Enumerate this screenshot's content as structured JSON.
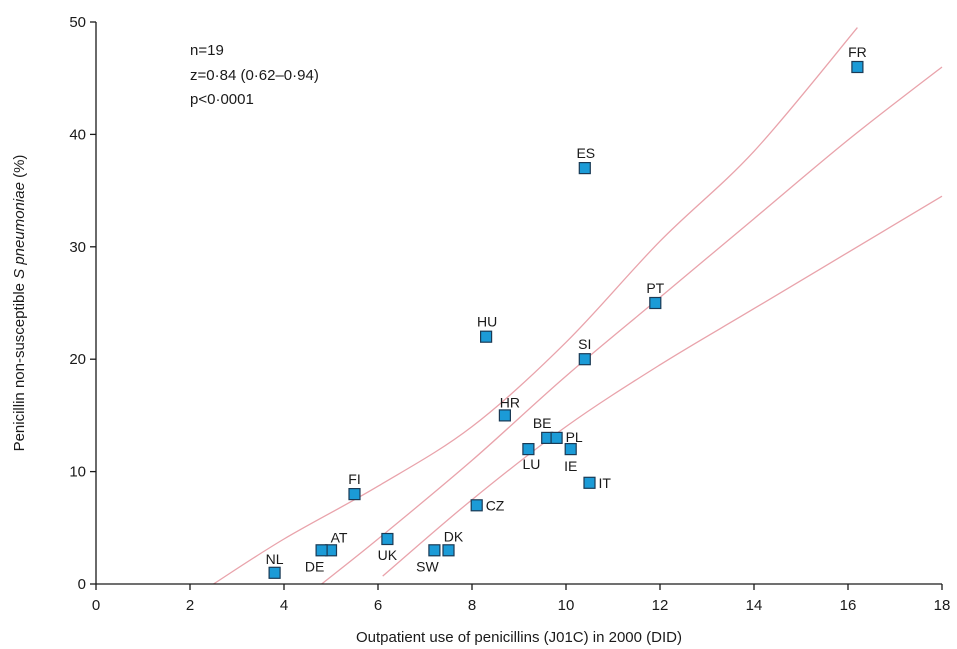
{
  "chart_data": {
    "type": "scatter",
    "xlabel": "Outpatient use of penicillins (J01C) in 2000 (DID)",
    "ylabel": {
      "prefix": "Penicillin non-susceptible ",
      "italic": "S pneumoniae",
      "suffix": " (%)"
    },
    "xlim": [
      0,
      18
    ],
    "ylim": [
      0,
      50
    ],
    "xticks": [
      "0",
      "2",
      "4",
      "6",
      "8",
      "10",
      "12",
      "14",
      "16",
      "18"
    ],
    "yticks": [
      "0",
      "10",
      "20",
      "30",
      "40",
      "50"
    ],
    "grid": false,
    "annotations": [
      "n=19",
      "z=0·84 (0·62–0·94)",
      "p<0·0001"
    ],
    "points": [
      {
        "label": "FR",
        "x": 16.2,
        "y": 46
      },
      {
        "label": "ES",
        "x": 10.4,
        "y": 37
      },
      {
        "label": "PT",
        "x": 11.9,
        "y": 25
      },
      {
        "label": "HU",
        "x": 8.3,
        "y": 22
      },
      {
        "label": "SI",
        "x": 10.4,
        "y": 20
      },
      {
        "label": "HR",
        "x": 8.7,
        "y": 15
      },
      {
        "label": "BE",
        "x": 9.6,
        "y": 13
      },
      {
        "label": "PL",
        "x": 9.8,
        "y": 13
      },
      {
        "label": "LU",
        "x": 9.2,
        "y": 12
      },
      {
        "label": "IE",
        "x": 10.1,
        "y": 12
      },
      {
        "label": "IT",
        "x": 10.5,
        "y": 9
      },
      {
        "label": "FI",
        "x": 5.5,
        "y": 8
      },
      {
        "label": "CZ",
        "x": 8.1,
        "y": 7
      },
      {
        "label": "UK",
        "x": 6.2,
        "y": 4
      },
      {
        "label": "AT",
        "x": 5.0,
        "y": 3
      },
      {
        "label": "DE",
        "x": 4.8,
        "y": 3
      },
      {
        "label": "DK",
        "x": 7.5,
        "y": 3
      },
      {
        "label": "SW",
        "x": 7.2,
        "y": 3
      },
      {
        "label": "NL",
        "x": 3.8,
        "y": 1
      }
    ],
    "lines": [
      {
        "role": "upper-confidence",
        "points": [
          [
            2.5,
            0
          ],
          [
            4,
            4
          ],
          [
            6,
            8.7
          ],
          [
            8,
            14
          ],
          [
            10,
            21.5
          ],
          [
            12,
            30.5
          ],
          [
            14,
            38.5
          ],
          [
            16.2,
            49.5
          ]
        ]
      },
      {
        "role": "regression",
        "points": [
          [
            4.8,
            0
          ],
          [
            6,
            4
          ],
          [
            8,
            11
          ],
          [
            10,
            18.5
          ],
          [
            12,
            25.5
          ],
          [
            14,
            32.5
          ],
          [
            16,
            39.5
          ],
          [
            18,
            46
          ]
        ]
      },
      {
        "role": "lower-confidence",
        "points": [
          [
            6.1,
            0.7
          ],
          [
            8,
            7.5
          ],
          [
            10,
            14
          ],
          [
            12,
            19.5
          ],
          [
            14,
            24.5
          ],
          [
            16,
            29.5
          ],
          [
            18,
            34.5
          ]
        ]
      }
    ]
  }
}
